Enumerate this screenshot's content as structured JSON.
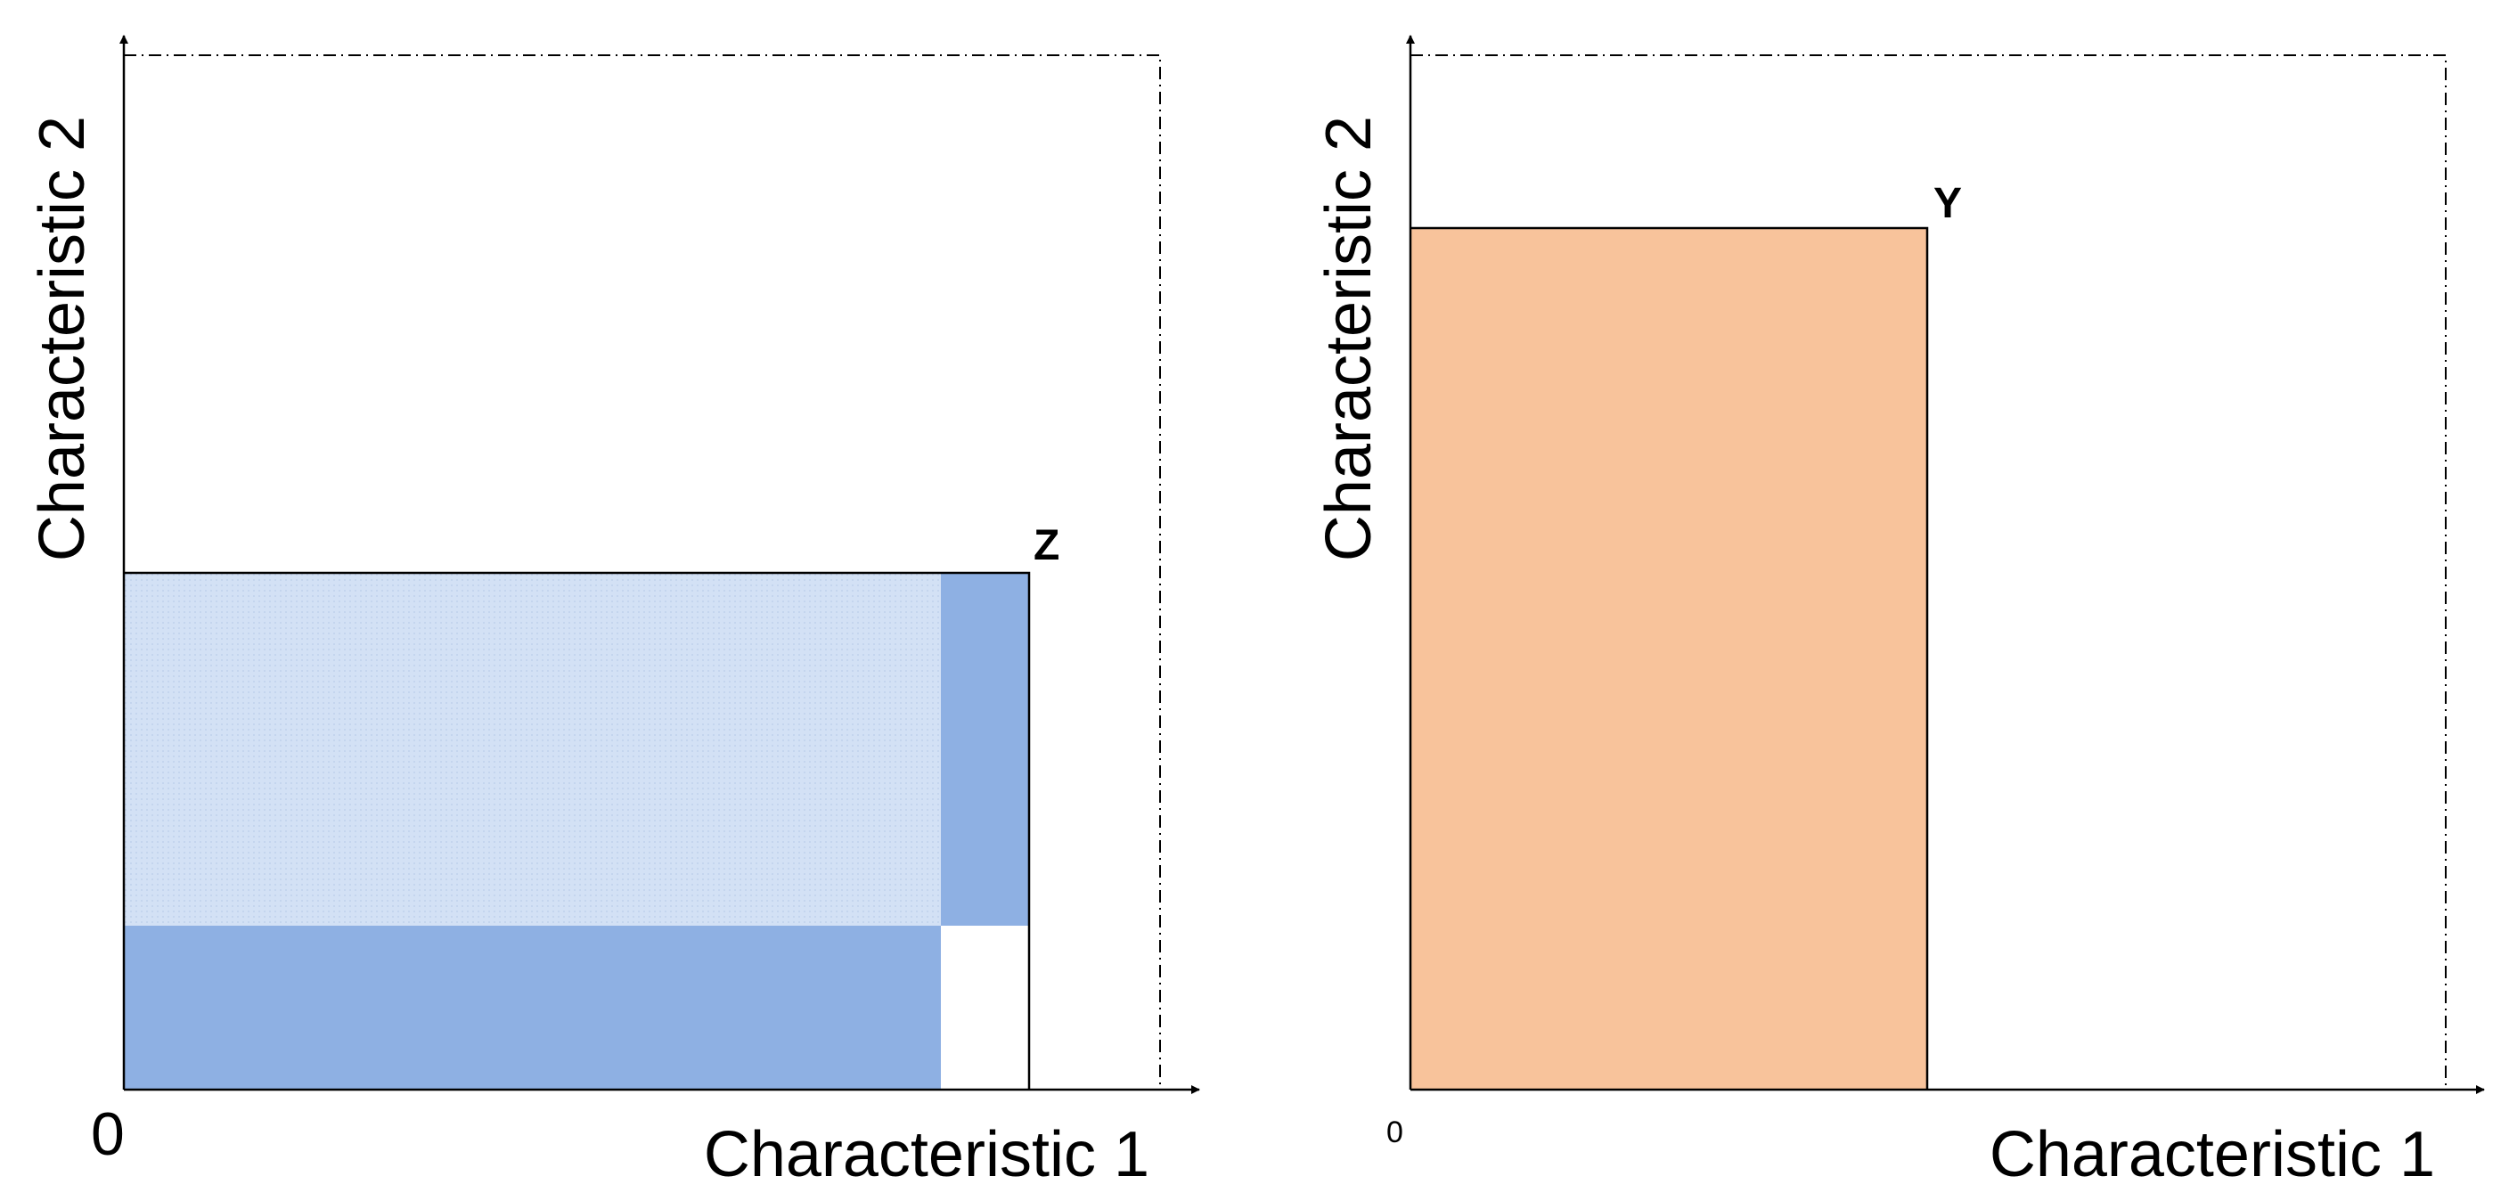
{
  "left_panel": {
    "x_axis_label": "Characteristic 1",
    "y_axis_label": "Characteristic 2",
    "origin_label": "0",
    "point_label": "Z",
    "colors": {
      "light_region": "#d3e1f5",
      "dark_region": "#8eb0e3",
      "outline": "#000000"
    }
  },
  "right_panel": {
    "x_axis_label": "Characteristic 1",
    "y_axis_label": "Characteristic 2",
    "origin_label": "0",
    "point_label": "Y",
    "colors": {
      "region": "#f8c39b",
      "outline": "#000000"
    }
  }
}
